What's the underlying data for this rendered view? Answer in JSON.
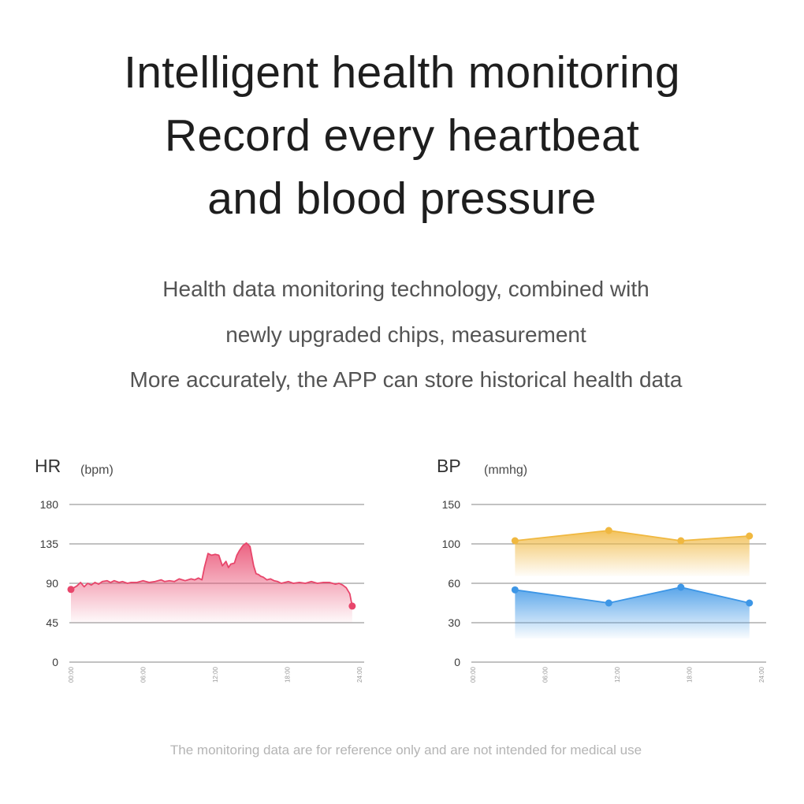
{
  "headline": {
    "line1": "Intelligent health monitoring",
    "line2": "Record every heartbeat",
    "line3": "and blood pressure"
  },
  "description": {
    "line1": "Health data monitoring technology, combined with",
    "line2": "newly upgraded chips, measurement",
    "line3": "More accurately, the APP can store historical health data"
  },
  "footer": "The monitoring data are for reference only and are not intended for medical use",
  "chart_data": [
    {
      "type": "area",
      "title": "HR",
      "unit": "(bpm)",
      "ylim": [
        0,
        180
      ],
      "yticks": [
        0,
        45,
        90,
        135,
        180
      ],
      "xlim": [
        0,
        24
      ],
      "xticks": [
        "00:00",
        "06:00",
        "12:00",
        "18:00",
        "24:00"
      ],
      "grid": true,
      "color": "#e8466b",
      "series": [
        {
          "x": [
            0,
            0.5,
            0.8,
            1.1,
            1.4,
            1.7,
            2,
            2.3,
            2.6,
            3,
            3.3,
            3.6,
            4,
            4.3,
            4.7,
            5,
            5.5,
            6,
            6.5,
            7,
            7.5,
            7.8,
            8.2,
            8.6,
            9,
            9.5,
            10,
            10.3,
            10.6,
            10.9,
            11.1,
            11.4,
            11.7,
            12,
            12.3,
            12.6,
            12.9,
            13.1,
            13.3,
            13.6,
            13.8,
            14,
            14.3,
            14.6,
            14.9,
            15.2,
            15.4,
            15.6,
            15.8,
            16,
            16.3,
            16.6,
            16.9,
            17.2,
            17.5,
            17.8,
            18.1,
            18.5,
            19,
            19.5,
            20,
            20.5,
            21,
            21.5,
            22,
            22.3,
            22.6,
            22.9,
            23.2,
            23.4
          ],
          "y": [
            83,
            87,
            91,
            86,
            90,
            88,
            91,
            89,
            92,
            93,
            91,
            93,
            91,
            92,
            90,
            91,
            91,
            93,
            91,
            92,
            94,
            92,
            93,
            92,
            95,
            93,
            95,
            94,
            96,
            94,
            108,
            124,
            122,
            123,
            122,
            110,
            115,
            108,
            112,
            113,
            122,
            127,
            133,
            136,
            132,
            110,
            101,
            100,
            98,
            97,
            94,
            95,
            93,
            92,
            90,
            91,
            92,
            90,
            91,
            90,
            92,
            90,
            91,
            91,
            89,
            90,
            88,
            85,
            78,
            64
          ]
        }
      ]
    },
    {
      "type": "area",
      "title": "BP",
      "unit": "(mmhg)",
      "ylim": [
        0,
        150
      ],
      "yticks": [
        0,
        30,
        60,
        100,
        150
      ],
      "xlim": [
        0,
        24
      ],
      "xticks": [
        "00:00",
        "06:00",
        "12:00",
        "18:00",
        "24:00"
      ],
      "grid": true,
      "series": [
        {
          "color": "#f0b840",
          "x": [
            3.5,
            11.3,
            17.3,
            23
          ],
          "y": [
            104,
            117,
            104,
            110
          ]
        },
        {
          "color": "#3d96e6",
          "x": [
            3.5,
            11.3,
            17.3,
            23
          ],
          "y": [
            55,
            45,
            57,
            45
          ]
        }
      ]
    }
  ]
}
